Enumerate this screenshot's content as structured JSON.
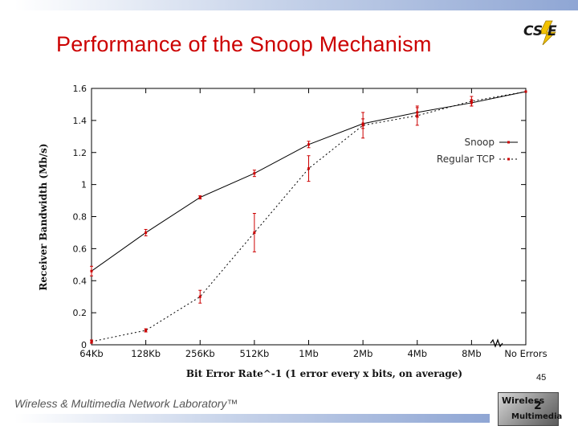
{
  "slide": {
    "title": "Performance of the Snoop Mechanism",
    "logo_text": "CS E",
    "page_number": "45",
    "footer_text": "Wireless & Multimedia Network Laboratory™",
    "footer_logo": {
      "word1": "Wireless",
      "digit": "2",
      "word2": "Multimedia"
    }
  },
  "colors": {
    "title": "#cc0000",
    "marker": "#cc0000",
    "line": "#000000"
  },
  "chart_data": {
    "type": "line",
    "xlabel": "Bit Error Rate^-1 (1 error every x bits, on average)",
    "ylabel": "Receiver Bandwidth (Mb/s)",
    "categories": [
      "64Kb",
      "128Kb",
      "256Kb",
      "512Kb",
      "1Mb",
      "2Mb",
      "4Mb",
      "8Mb",
      "No Errors"
    ],
    "ylim": [
      0,
      1.6
    ],
    "yticks": [
      0,
      0.2,
      0.4,
      0.6,
      0.8,
      1,
      1.2,
      1.4,
      1.6
    ],
    "ytick_labels": [
      "0",
      "0.2",
      "0.4",
      "0.6",
      "0.8",
      "1",
      "1.2",
      "1.4",
      "1.6"
    ],
    "series": [
      {
        "name": "Snoop",
        "style": "solid",
        "values": [
          0.46,
          0.7,
          0.92,
          1.07,
          1.25,
          1.38,
          1.45,
          1.51,
          1.58
        ],
        "err": [
          0.03,
          0.02,
          0.01,
          0.02,
          0.02,
          0.03,
          0.03,
          0.02,
          0
        ]
      },
      {
        "name": "Regular TCP",
        "style": "dotted",
        "values": [
          0.02,
          0.09,
          0.3,
          0.7,
          1.1,
          1.37,
          1.43,
          1.52,
          1.58
        ],
        "err": [
          0.01,
          0.01,
          0.04,
          0.12,
          0.08,
          0.08,
          0.06,
          0.03,
          0
        ]
      }
    ],
    "legend_position": "top-right",
    "axis_break_between": [
      "8Mb",
      "No Errors"
    ],
    "grid": false
  }
}
